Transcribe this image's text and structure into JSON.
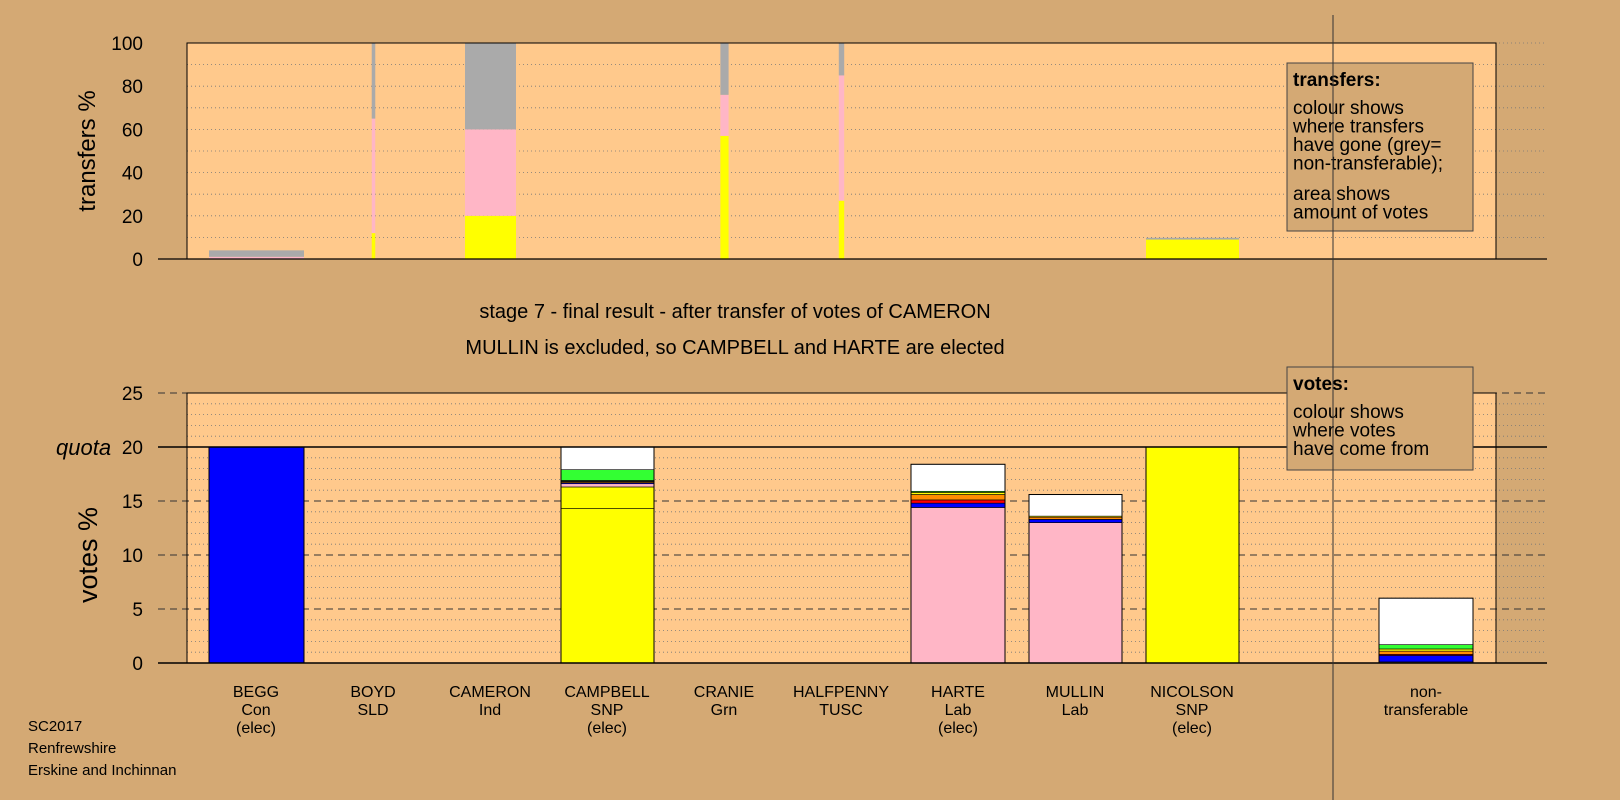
{
  "chart_data": [
    {
      "type": "bar",
      "title": "",
      "ylabel": "transfers %",
      "ylim": [
        0,
        100
      ],
      "yticks": [
        0,
        20,
        40,
        60,
        80,
        100
      ],
      "grid": true,
      "legend": {
        "heading": "transfers:",
        "lines_1": [
          "colour shows",
          "where transfers",
          "have gone (grey=",
          "non-transferable);"
        ],
        "lines_2": [
          "area shows",
          "amount of votes"
        ]
      },
      "bars": [
        {
          "candidate": "BEGG",
          "source_votes_pct": 0.5,
          "segments": [
            {
              "color": "#ffb6c6",
              "value": 1
            },
            {
              "color": "#aaaaaa",
              "value": 3
            }
          ]
        },
        {
          "candidate": "BOYD",
          "source_votes_pct": 0.3,
          "segments": [
            {
              "color": "#ffff00",
              "value": 12
            },
            {
              "color": "#ffb6c6",
              "value": 53
            },
            {
              "color": "#aaaaaa",
              "value": 35
            }
          ]
        },
        {
          "candidate": "CAMERON",
          "source_votes_pct": 2.3,
          "segments": [
            {
              "color": "#ffff00",
              "value": 20
            },
            {
              "color": "#ffb6c6",
              "value": 40
            },
            {
              "color": "#aaaaaa",
              "value": 40
            }
          ]
        },
        {
          "candidate": "CRANIE",
          "source_votes_pct": 0.4,
          "segments": [
            {
              "color": "#ffff00",
              "value": 57
            },
            {
              "color": "#ffb6c6",
              "value": 19
            },
            {
              "color": "#aaaaaa",
              "value": 24
            }
          ]
        },
        {
          "candidate": "HALFPENNY",
          "source_votes_pct": 0.15,
          "segments": [
            {
              "color": "#ffff00",
              "value": 27
            },
            {
              "color": "#ffb6c6",
              "value": 58
            },
            {
              "color": "#aaaaaa",
              "value": 15
            }
          ]
        },
        {
          "candidate": "NICOLSON",
          "source_votes_pct": 4.5,
          "segments": [
            {
              "color": "#ffff00",
              "value": 9
            },
            {
              "color": "#aaaaaa",
              "value": 0.8
            }
          ]
        }
      ]
    },
    {
      "type": "bar",
      "title": "stage 7 - final result - after transfer of votes of CAMERON",
      "subtitle": "MULLIN is excluded, so CAMPBELL and HARTE are elected",
      "ylabel": "votes %",
      "ylim": [
        0,
        25
      ],
      "yticks": [
        0,
        5,
        10,
        15,
        20,
        25
      ],
      "quota": 20,
      "quota_label": "quota",
      "grid": true,
      "legend": {
        "heading": "votes:",
        "lines_1": [
          "colour shows",
          "where votes",
          "have come from"
        ]
      },
      "candidates": [
        {
          "name": "BEGG",
          "party": "Con",
          "status": "(elec)",
          "segments": [
            {
              "color": "#0000ff",
              "value": 20
            }
          ]
        },
        {
          "name": "BOYD",
          "party": "SLD",
          "status": "",
          "segments": []
        },
        {
          "name": "CAMERON",
          "party": "Ind",
          "status": "",
          "segments": []
        },
        {
          "name": "CAMPBELL",
          "party": "SNP",
          "status": "(elec)",
          "segments": [
            {
              "color": "#ffff00",
              "value": 14.3
            },
            {
              "color": "#ffff00",
              "value": 2.0
            },
            {
              "color": "#ffb6c6",
              "value": 0.3
            },
            {
              "color": "#0000ff",
              "value": 0.1
            },
            {
              "color": "#ff8c00",
              "value": 0.1
            },
            {
              "color": "#333333",
              "value": 0.1
            },
            {
              "color": "#33ff33",
              "value": 1.0
            },
            {
              "color": "#ffffff",
              "value": 2.1
            }
          ]
        },
        {
          "name": "CRANIE",
          "party": "Grn",
          "status": "",
          "segments": []
        },
        {
          "name": "HALFPENNY",
          "party": "TUSC",
          "status": "",
          "segments": []
        },
        {
          "name": "HARTE",
          "party": "Lab",
          "status": "(elec)",
          "segments": [
            {
              "color": "#ffb6c6",
              "value": 14.4
            },
            {
              "color": "#0000ff",
              "value": 0.4
            },
            {
              "color": "#ff0000",
              "value": 0.3
            },
            {
              "color": "#ff8c00",
              "value": 0.5
            },
            {
              "color": "#ffff00",
              "value": 0.2
            },
            {
              "color": "#33ff33",
              "value": 0.1
            },
            {
              "color": "#ffffff",
              "value": 2.5
            }
          ]
        },
        {
          "name": "MULLIN",
          "party": "Lab",
          "status": "",
          "segments": [
            {
              "color": "#ffb6c6",
              "value": 13.0
            },
            {
              "color": "#0000ff",
              "value": 0.3
            },
            {
              "color": "#ff8c00",
              "value": 0.2
            },
            {
              "color": "#ffff00",
              "value": 0.1
            },
            {
              "color": "#ffffff",
              "value": 2.0
            }
          ]
        },
        {
          "name": "NICOLSON",
          "party": "SNP",
          "status": "(elec)",
          "segments": [
            {
              "color": "#ffff00",
              "value": 20
            }
          ]
        },
        {
          "name": "non-",
          "party": "transferable",
          "status": "",
          "segments": [
            {
              "color": "#aaaaaa",
              "value": 0.1
            },
            {
              "color": "#0000ff",
              "value": 0.6
            },
            {
              "color": "#ff0000",
              "value": 0.1
            },
            {
              "color": "#ff8c00",
              "value": 0.3
            },
            {
              "color": "#ffff00",
              "value": 0.2
            },
            {
              "color": "#33ff33",
              "value": 0.4
            },
            {
              "color": "#ffffff",
              "value": 4.3
            }
          ]
        }
      ]
    }
  ],
  "footer": {
    "line1": "SC2017",
    "line2": "Renfrewshire",
    "line3": "Erskine and Inchinnan"
  }
}
